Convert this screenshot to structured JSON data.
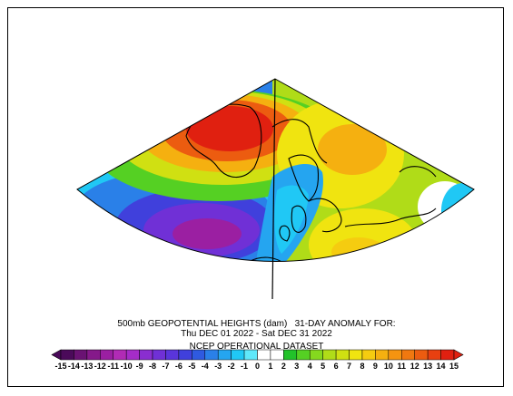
{
  "titles": {
    "line1": "500mb GEOPOTENTIAL HEIGHTS (dam)   31-DAY ANOMALY FOR:",
    "line2": "Thu DEC 01 2022 - Sat DEC 31 2022",
    "line3": "NCEP OPERATIONAL DATASET"
  },
  "colorbar": {
    "labels": [
      "-15",
      "-14",
      "-13",
      "-12",
      "-11",
      "-10",
      "-9",
      "-8",
      "-7",
      "-6",
      "-5",
      "-4",
      "-3",
      "-2",
      "-1",
      "0",
      "1",
      "2",
      "3",
      "4",
      "5",
      "6",
      "7",
      "8",
      "9",
      "10",
      "11",
      "12",
      "13",
      "14",
      "15"
    ],
    "colors": [
      "#4b0a5a",
      "#6a1273",
      "#85198a",
      "#9b1fa2",
      "#b12bb5",
      "#a52cc8",
      "#8a2ed0",
      "#7030d6",
      "#5a35db",
      "#4040dc",
      "#2f5ae0",
      "#2a80e8",
      "#25a5f0",
      "#20c8f5",
      "#60e8fa",
      "#ffffff",
      "#ffffff",
      "#22c22a",
      "#55d023",
      "#85d81e",
      "#b0dc18",
      "#d0e012",
      "#f0e410",
      "#f5cc10",
      "#f5b010",
      "#f59410",
      "#f07810",
      "#ec5c10",
      "#e84010",
      "#e02010"
    ]
  }
}
